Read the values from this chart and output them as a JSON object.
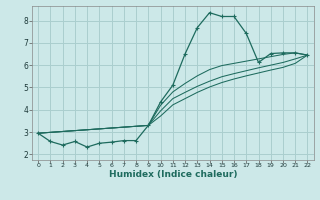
{
  "xlabel": "Humidex (Indice chaleur)",
  "bg_color": "#cce8e8",
  "grid_color": "#aacece",
  "line_color": "#1e6b5e",
  "xlim": [
    -0.5,
    22.5
  ],
  "ylim": [
    1.75,
    8.65
  ],
  "xticks": [
    0,
    1,
    2,
    3,
    4,
    5,
    6,
    7,
    8,
    9,
    10,
    11,
    12,
    13,
    14,
    15,
    16,
    17,
    18,
    19,
    20,
    21,
    22
  ],
  "yticks": [
    2,
    3,
    4,
    5,
    6,
    7,
    8
  ],
  "line1_x": [
    0,
    1,
    2,
    3,
    4,
    5,
    6,
    7,
    8,
    9,
    10,
    11,
    12,
    13,
    14,
    15,
    16,
    17,
    18,
    19,
    20,
    21,
    22
  ],
  "line1_y": [
    2.95,
    2.58,
    2.42,
    2.58,
    2.33,
    2.5,
    2.55,
    2.62,
    2.62,
    3.3,
    4.35,
    5.1,
    6.5,
    7.68,
    8.35,
    8.18,
    8.18,
    7.42,
    6.12,
    6.52,
    6.55,
    6.55,
    6.45
  ],
  "line2_x": [
    0,
    9,
    10,
    11,
    12,
    13,
    14,
    15,
    16,
    17,
    18,
    19,
    20,
    21,
    22
  ],
  "line2_y": [
    2.95,
    3.3,
    4.2,
    4.8,
    5.18,
    5.52,
    5.8,
    5.98,
    6.08,
    6.18,
    6.28,
    6.38,
    6.48,
    6.55,
    6.45
  ],
  "line3_x": [
    0,
    9,
    10,
    11,
    12,
    13,
    14,
    15,
    16,
    17,
    18,
    19,
    20,
    21,
    22
  ],
  "line3_y": [
    2.95,
    3.3,
    3.95,
    4.5,
    4.78,
    5.05,
    5.28,
    5.48,
    5.62,
    5.75,
    5.88,
    6.0,
    6.12,
    6.28,
    6.45
  ],
  "line4_x": [
    0,
    9,
    10,
    11,
    12,
    13,
    14,
    15,
    16,
    17,
    18,
    19,
    20,
    21,
    22
  ],
  "line4_y": [
    2.95,
    3.3,
    3.72,
    4.22,
    4.5,
    4.78,
    5.02,
    5.22,
    5.38,
    5.52,
    5.65,
    5.78,
    5.9,
    6.08,
    6.45
  ]
}
